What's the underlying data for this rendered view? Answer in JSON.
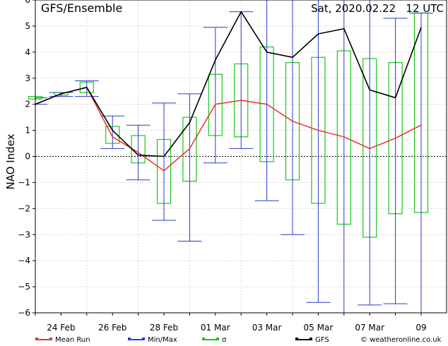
{
  "chart_data": {
    "type": "box",
    "title": "GFS/Ensemble",
    "date_label": "Sat, 2020.02.22   12 UTC",
    "ylabel": "NAO Index",
    "ylim": [
      -6,
      6
    ],
    "yticks": [
      "-6",
      "-5",
      "-4",
      "-3",
      "-2",
      "-1",
      "0",
      "1",
      "2",
      "3",
      "4",
      "5",
      "6"
    ],
    "x_tick_labels": [
      "24 Feb",
      "26 Feb",
      "28 Feb",
      "01 Mar",
      "03 Mar",
      "05 Mar",
      "07 Mar",
      "09"
    ],
    "x_tick_positions": [
      1,
      3,
      5,
      7,
      9,
      11,
      13,
      15
    ],
    "xlim": [
      0,
      15.4
    ],
    "steps": [
      0,
      1,
      2,
      3,
      4,
      5,
      6,
      7,
      8,
      9,
      10,
      11,
      12,
      13,
      14,
      15
    ],
    "series": [
      {
        "name": "Mean Run",
        "color": "#e8322e",
        "values": [
          2.0,
          2.4,
          2.65,
          0.75,
          0.15,
          -0.55,
          0.3,
          2.0,
          2.15,
          2.0,
          1.35,
          1.0,
          0.75,
          0.3,
          0.7,
          1.2
        ]
      },
      {
        "name": "GFS",
        "color": "#000000",
        "values": [
          2.0,
          2.4,
          2.65,
          1.0,
          0.05,
          0.0,
          1.3,
          3.7,
          5.55,
          4.0,
          3.8,
          4.7,
          4.9,
          2.55,
          2.25,
          4.95
        ]
      }
    ],
    "minmax": {
      "name": "Min/Max",
      "color": "#2a3ccc",
      "min": [
        2.0,
        2.3,
        2.3,
        0.3,
        -0.9,
        -2.45,
        -3.25,
        -0.25,
        0.3,
        -1.7,
        -3.0,
        -5.6,
        -6.0,
        -5.7,
        -5.65,
        -6.0
      ],
      "max": [
        2.25,
        2.45,
        2.9,
        1.55,
        1.2,
        2.05,
        2.4,
        4.95,
        5.55,
        6.0,
        6.0,
        6.0,
        6.0,
        6.0,
        5.3,
        5.5
      ]
    },
    "sigma": {
      "name": "σ",
      "color": "#1fc41f",
      "low": [
        2.2,
        2.35,
        2.45,
        0.5,
        -0.25,
        -1.8,
        -0.95,
        0.8,
        0.75,
        -0.2,
        -0.9,
        -1.8,
        -2.6,
        -3.1,
        -2.2,
        -2.15
      ],
      "high": [
        2.3,
        2.45,
        2.85,
        1.15,
        0.8,
        0.65,
        1.5,
        3.15,
        3.55,
        4.2,
        3.6,
        3.8,
        4.05,
        3.75,
        3.6,
        5.5
      ]
    },
    "grid": true,
    "legend": "bottom",
    "watermark": "© weatheronline.co.uk"
  }
}
